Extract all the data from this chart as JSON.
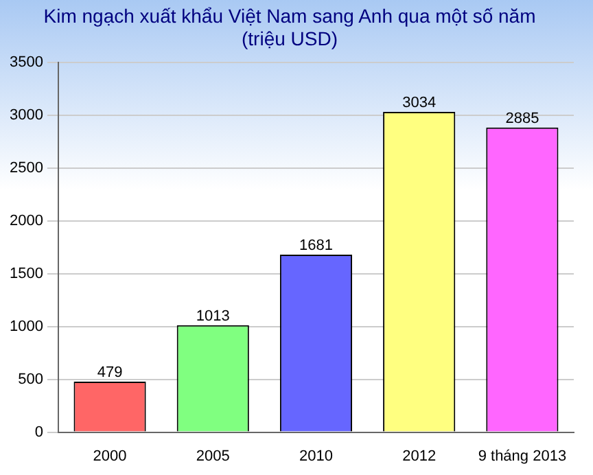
{
  "chart_data": {
    "type": "bar",
    "title": "Kim ngạch xuất khẩu Việt Nam sang Anh qua một số năm\n(triệu USD)",
    "categories": [
      "2000",
      "2005",
      "2010",
      "2012",
      "9 tháng 2013"
    ],
    "values": [
      479,
      1013,
      1681,
      3034,
      2885
    ],
    "colors": [
      "#ff6666",
      "#80ff80",
      "#6666ff",
      "#ffff80",
      "#ff66ff"
    ],
    "ylim": [
      0,
      3500
    ],
    "yticks": [
      0,
      500,
      1000,
      1500,
      2000,
      2500,
      3000,
      3500
    ],
    "grid": "y",
    "data_labels": true,
    "legend": false
  }
}
